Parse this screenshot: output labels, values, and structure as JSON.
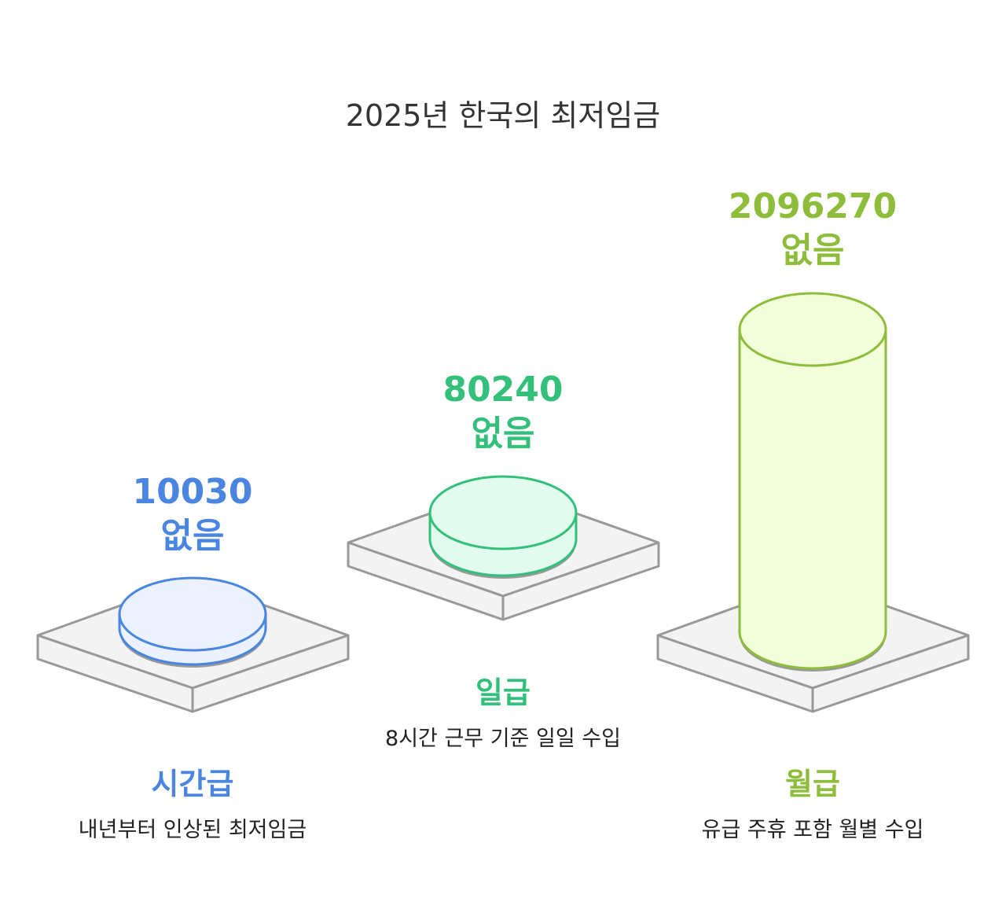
{
  "title": "2025년 한국의 최저임금",
  "colors": {
    "hourly": "#4a86e0",
    "daily": "#33c07a",
    "monthly": "#8ebd3c"
  },
  "items": [
    {
      "value": "10030",
      "unit": "없음",
      "label": "시간급",
      "description": "내년부터 인상된 최저임금"
    },
    {
      "value": "80240",
      "unit": "없음",
      "label": "일급",
      "description": "8시간 근무 기준 일일 수입"
    },
    {
      "value": "2096270",
      "unit": "없음",
      "label": "월급",
      "description": "유급 주휴 포함 월별 수입"
    }
  ]
}
